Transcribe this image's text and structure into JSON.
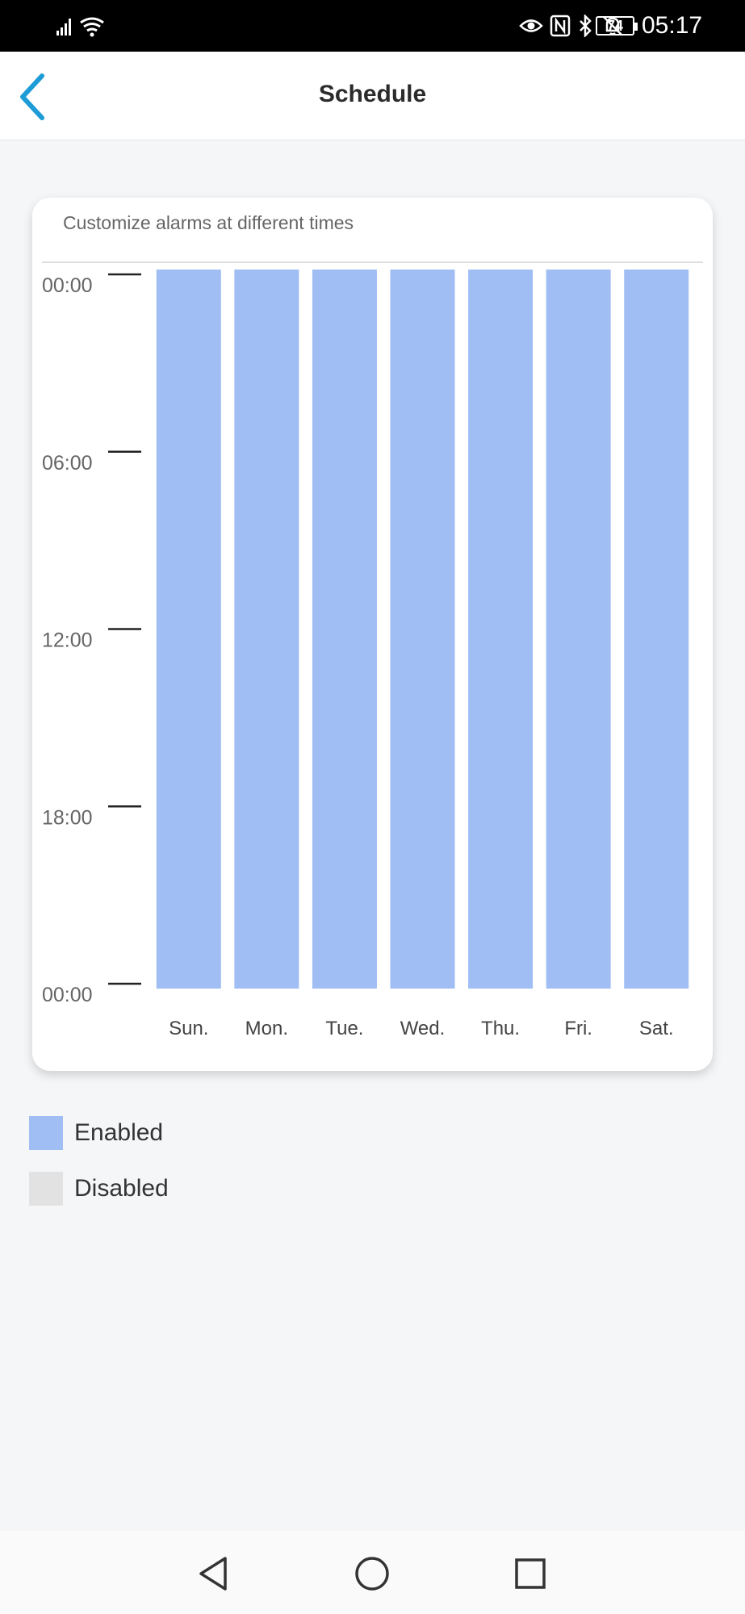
{
  "status_bar": {
    "battery": "74",
    "time": "05:17"
  },
  "header": {
    "title": "Schedule"
  },
  "card": {
    "subtitle": "Customize alarms at different times"
  },
  "chart_data": {
    "type": "bar",
    "categories": [
      "Sun.",
      "Mon.",
      "Tue.",
      "Wed.",
      "Thu.",
      "Fri.",
      "Sat."
    ],
    "y_tick_labels": [
      "00:00",
      "06:00",
      "12:00",
      "18:00",
      "00:00"
    ],
    "y_range_hours": [
      0,
      24
    ],
    "series": [
      {
        "values": [
          [
            0,
            24
          ],
          [
            0,
            24
          ],
          [
            0,
            24
          ],
          [
            0,
            24
          ],
          [
            0,
            24
          ],
          [
            0,
            24
          ],
          [
            0,
            24
          ]
        ],
        "color": "#a0bef4"
      }
    ]
  },
  "legend": {
    "items": [
      {
        "label": "Enabled",
        "color": "#a0bef4"
      },
      {
        "label": "Disabled",
        "color": "#e2e2e2"
      }
    ]
  },
  "colors": {
    "accent": "#1e9cd7",
    "enabled": "#a0bef4",
    "disabled": "#e2e2e2"
  },
  "icons": {
    "back": "chevron-left-icon",
    "nav_back": "triangle-back-icon",
    "nav_home": "circle-home-icon",
    "nav_recents": "square-recents-icon"
  }
}
